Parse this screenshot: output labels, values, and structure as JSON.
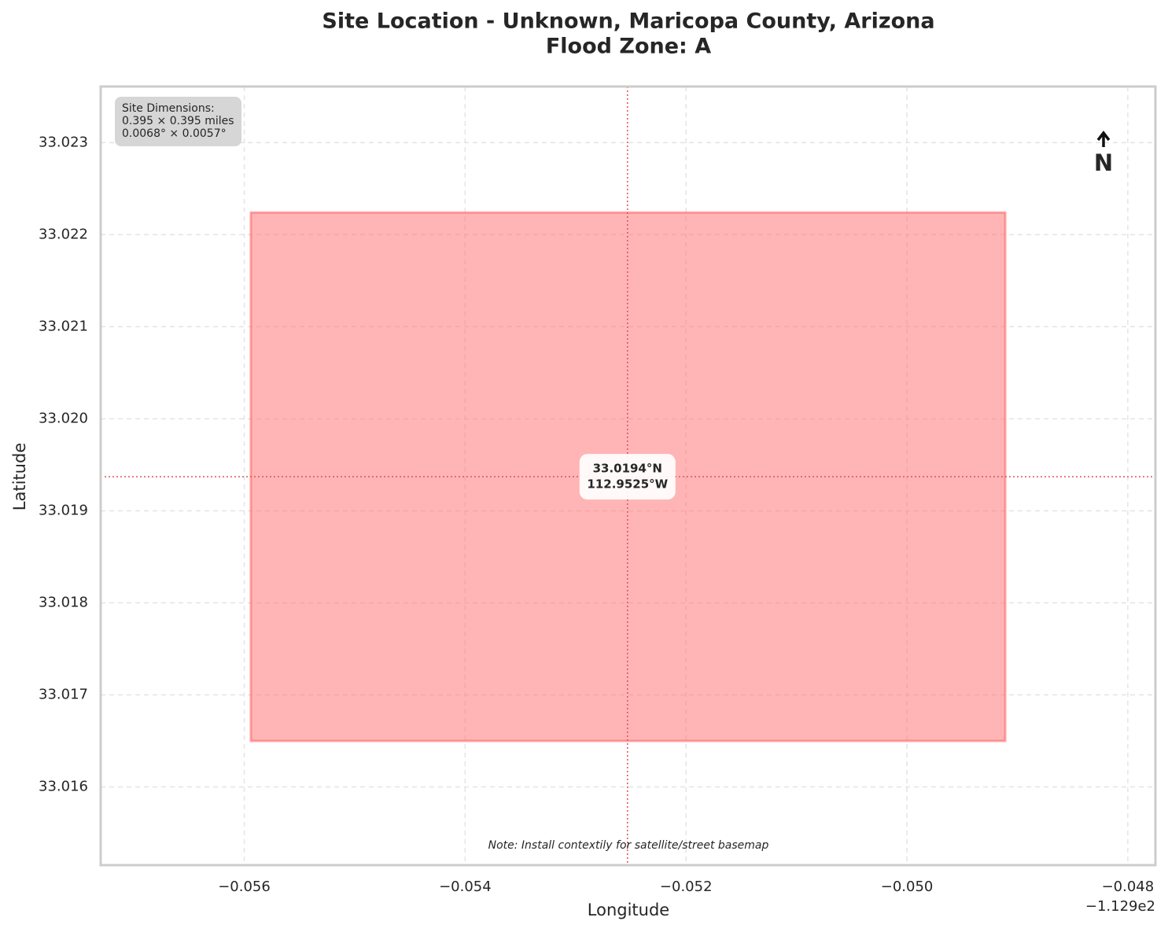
{
  "chart_data": {
    "type": "site_map",
    "title": [
      "Site Location - Unknown, Maricopa County, Arizona",
      "Flood Zone: A"
    ],
    "xlabel": "Longitude",
    "ylabel": "Latitude",
    "x_offset_label": "−1.129e2",
    "xlim": [
      -112.9573,
      -112.94775
    ],
    "ylim": [
      33.01515,
      33.02361
    ],
    "xticks": [
      {
        "value": -112.956,
        "label": "−0.056"
      },
      {
        "value": -112.954,
        "label": "−0.054"
      },
      {
        "value": -112.952,
        "label": "−0.052"
      },
      {
        "value": -112.95,
        "label": "−0.050"
      },
      {
        "value": -112.948,
        "label": "−0.048"
      }
    ],
    "yticks": [
      33.016,
      33.017,
      33.018,
      33.019,
      {
        "value": 33.02,
        "label": "33.020"
      },
      33.021,
      33.022,
      33.023
    ],
    "grid": true,
    "site": {
      "x0": -112.95594,
      "x1": -112.94911,
      "y0": 33.0165,
      "y1": 33.02224,
      "color": "#ff6b6b"
    },
    "center": {
      "lon": -112.95253,
      "lat": 33.01937,
      "label": [
        "33.0194°N",
        "112.9525°W"
      ],
      "color": "#e0505a"
    },
    "info_box": [
      "Site Dimensions:",
      "0.395 × 0.395 miles",
      "0.0068° × 0.0057°"
    ],
    "north_label": "N",
    "note": "Note: Install contextily for satellite/street basemap"
  }
}
